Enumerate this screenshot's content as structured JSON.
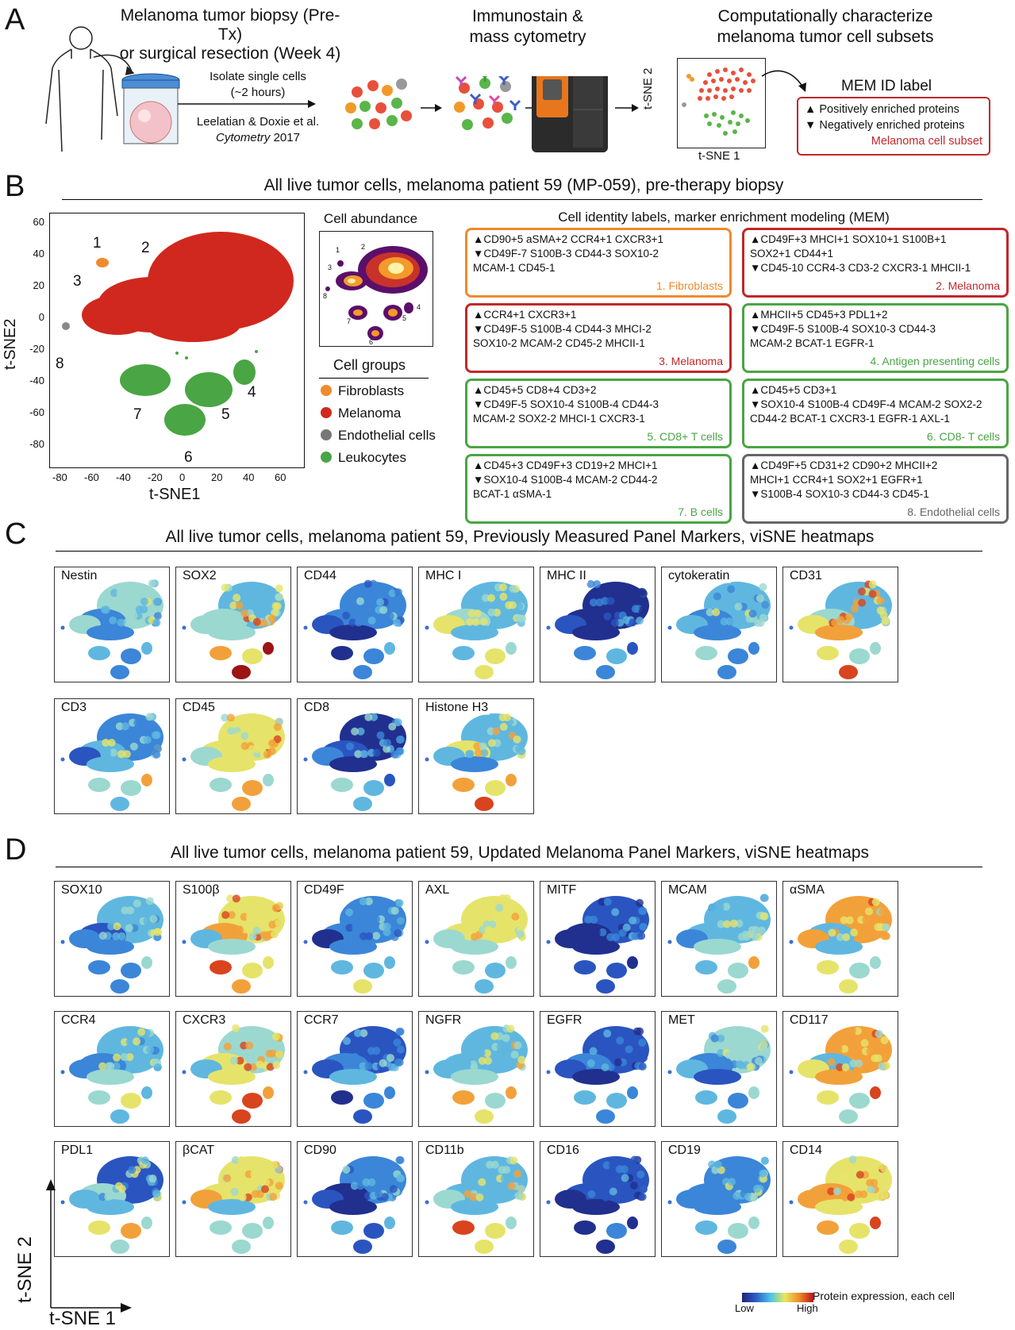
{
  "panel_labels": {
    "a": "A",
    "b": "B",
    "c": "C",
    "d": "D"
  },
  "panelA": {
    "step1_line1": "Melanoma tumor biopsy (Pre-Tx)",
    "step1_line2": "or surgical resection (Week 4)",
    "isolate_line1": "Isolate single cells",
    "isolate_line2": "(~2 hours)",
    "cite_line1": "Leelatian & Doxie et al.",
    "cite_journal": "Cytometry",
    "cite_year": "2017",
    "step2_line1": "Immunostain &",
    "step2_line2": "mass cytometry",
    "step3_line1": "Computationally characterize",
    "step3_line2": "melanoma tumor cell subsets",
    "tsne_x": "t-SNE 1",
    "tsne_y": "t-SNE 2",
    "mem_title": "MEM ID label",
    "mem_pos": "▲ Positively enriched proteins",
    "mem_neg": "▼ Negatively enriched proteins",
    "mem_subset": "Melanoma cell subset"
  },
  "panelB": {
    "header": "All live tumor cells, melanoma patient 59 (MP-059), pre-therapy biopsy",
    "xlabel": "t-SNE1",
    "ylabel": "t-SNE2",
    "xticks": [
      "-80",
      "-60",
      "-40",
      "-20",
      "0",
      "20",
      "40",
      "60"
    ],
    "yticks": [
      "60",
      "40",
      "20",
      "0",
      "-20",
      "-40",
      "-60",
      "-80"
    ],
    "cluster_numbers": [
      "1",
      "2",
      "3",
      "4",
      "5",
      "6",
      "7",
      "8"
    ],
    "abundance_title": "Cell abundance",
    "groups_title": "Cell groups",
    "groups": [
      {
        "name": "Fibroblasts",
        "color": "#f08a2c"
      },
      {
        "name": "Melanoma",
        "color": "#d0281e"
      },
      {
        "name": "Endothelial cells",
        "color": "#777777"
      },
      {
        "name": "Leukocytes",
        "color": "#4aa544"
      }
    ],
    "mem_title": "Cell identity labels, marker enrichment modeling (MEM)",
    "mem_boxes": [
      {
        "pos": "▲CD90+5 aSMA+2 CCR4+1 CXCR3+1",
        "neg": "▼CD49F-7 S100B-3 CD44-3 SOX10-2",
        "neg2": "MCAM-1 CD45-1",
        "label": "1. Fibroblasts",
        "color": "#f08a2c"
      },
      {
        "pos": "▲CD49F+3 MHCI+1 SOX10+1 S100B+1",
        "pos2": "SOX2+1 CD44+1",
        "neg": "▼CD45-10 CCR4-3 CD3-2 CXCR3-1 MHCII-1",
        "label": "2. Melanoma",
        "color": "#c0282a"
      },
      {
        "pos": "▲CCR4+1 CXCR3+1",
        "neg": "▼CD49F-5 S100B-4 CD44-3 MHCI-2",
        "neg2": "SOX10-2 MCAM-2 CD45-2 MHCII-1",
        "label": "3. Melanoma",
        "color": "#c0282a"
      },
      {
        "pos": "▲MHCII+5 CD45+3 PDL1+2",
        "neg": "▼CD49F-5 S100B-4 SOX10-3 CD44-3",
        "neg2": "MCAM-2 BCAT-1 EGFR-1",
        "label": "4. Antigen presenting cells",
        "color": "#4aa544"
      },
      {
        "pos": "▲CD45+5 CD8+4 CD3+2",
        "neg": "▼CD49F-5 SOX10-4 S100B-4 CD44-3",
        "neg2": "MCAM-2 SOX2-2 MHCI-1 CXCR3-1",
        "label": "5. CD8+ T cells",
        "color": "#4aa544"
      },
      {
        "pos": "▲CD45+5 CD3+1",
        "neg": "▼SOX10-4 S100B-4 CD49F-4 MCAM-2 SOX2-2",
        "neg2": "CD44-2 BCAT-1 CXCR3-1 EGFR-1 AXL-1",
        "label": "6. CD8- T cells",
        "color": "#4aa544"
      },
      {
        "pos": "▲CD45+3 CD49F+3 CD19+2 MHCI+1",
        "neg": "▼SOX10-4 S100B-4 MCAM-2 CD44-2",
        "neg2": "BCAT-1 αSMA-1",
        "label": "7. B cells",
        "color": "#4aa544"
      },
      {
        "pos": "▲CD49F+5 CD31+2 CD90+2 MHCII+2",
        "pos2": "MHCI+1 CCR4+1 SOX2+1 EGFR+1",
        "neg": "▼S100B-4 SOX10-3 CD44-3 CD45-1",
        "label": "8. Endothelial cells",
        "color": "#666666"
      }
    ]
  },
  "panelC": {
    "header": "All live tumor cells, melanoma patient 59, Previously Measured Panel Markers, viSNE heatmaps",
    "row1": [
      "Nestin",
      "SOX2",
      "CD44",
      "MHC I",
      "MHC II",
      "cytokeratin",
      "CD31"
    ],
    "row2": [
      "CD3",
      "CD45",
      "CD8",
      "Histone H3"
    ]
  },
  "panelD": {
    "header": "All live tumor cells, melanoma patient 59, Updated Melanoma Panel Markers, viSNE heatmaps",
    "row1": [
      "SOX10",
      "S100β",
      "CD49F",
      "AXL",
      "MITF",
      "MCAM",
      "αSMA"
    ],
    "row2": [
      "CCR4",
      "CXCR3",
      "CCR7",
      "NGFR",
      "EGFR",
      "MET",
      "CD117"
    ],
    "row3": [
      "PDL1",
      "βCAT",
      "CD90",
      "CD11b",
      "CD16",
      "CD19",
      "CD14"
    ],
    "axis_y": "t-SNE 2",
    "axis_x": "t-SNE 1",
    "scale_low": "Low",
    "scale_high": "High",
    "scale_label": "Protein expression, each cell"
  }
}
